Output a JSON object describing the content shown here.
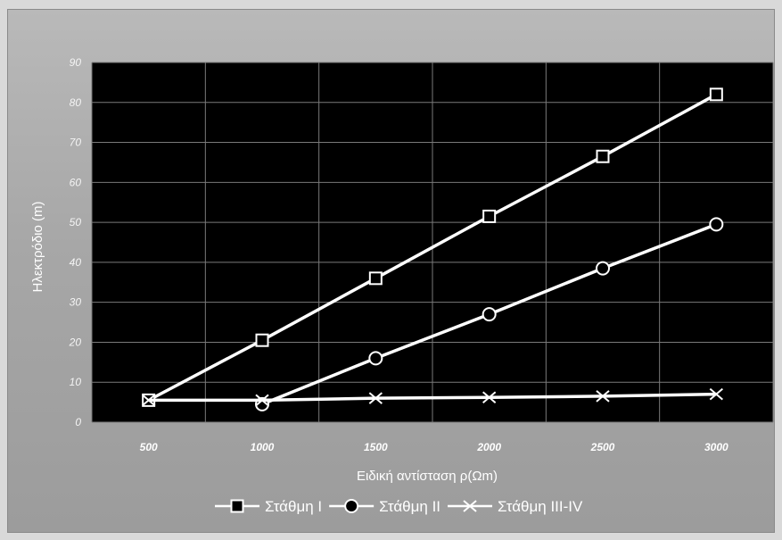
{
  "chart_data": {
    "type": "line",
    "xlabel": "Ειδική αντίσταση ρ(Ωm)",
    "ylabel": "Ηλεκτρόδιο (m)",
    "categories": [
      "500",
      "1000",
      "1500",
      "2000",
      "2500",
      "3000"
    ],
    "ylim": [
      0,
      90
    ],
    "yticks": [
      0,
      10,
      20,
      30,
      40,
      50,
      60,
      70,
      80,
      90
    ],
    "grid": true,
    "legend_position": "bottom",
    "plot_background": "#000000",
    "line_color": "#ffffff",
    "series": [
      {
        "name": "Στάθμη I",
        "marker": "square",
        "values": [
          5.5,
          20.5,
          36,
          51.5,
          66.5,
          82
        ]
      },
      {
        "name": "Στάθμη II",
        "marker": "circle",
        "values": [
          null,
          4.5,
          16,
          27,
          38.5,
          49.5
        ]
      },
      {
        "name": "Στάθμη III-IV",
        "marker": "x",
        "values": [
          5.5,
          5.5,
          6,
          6.2,
          6.5,
          7
        ]
      }
    ]
  }
}
